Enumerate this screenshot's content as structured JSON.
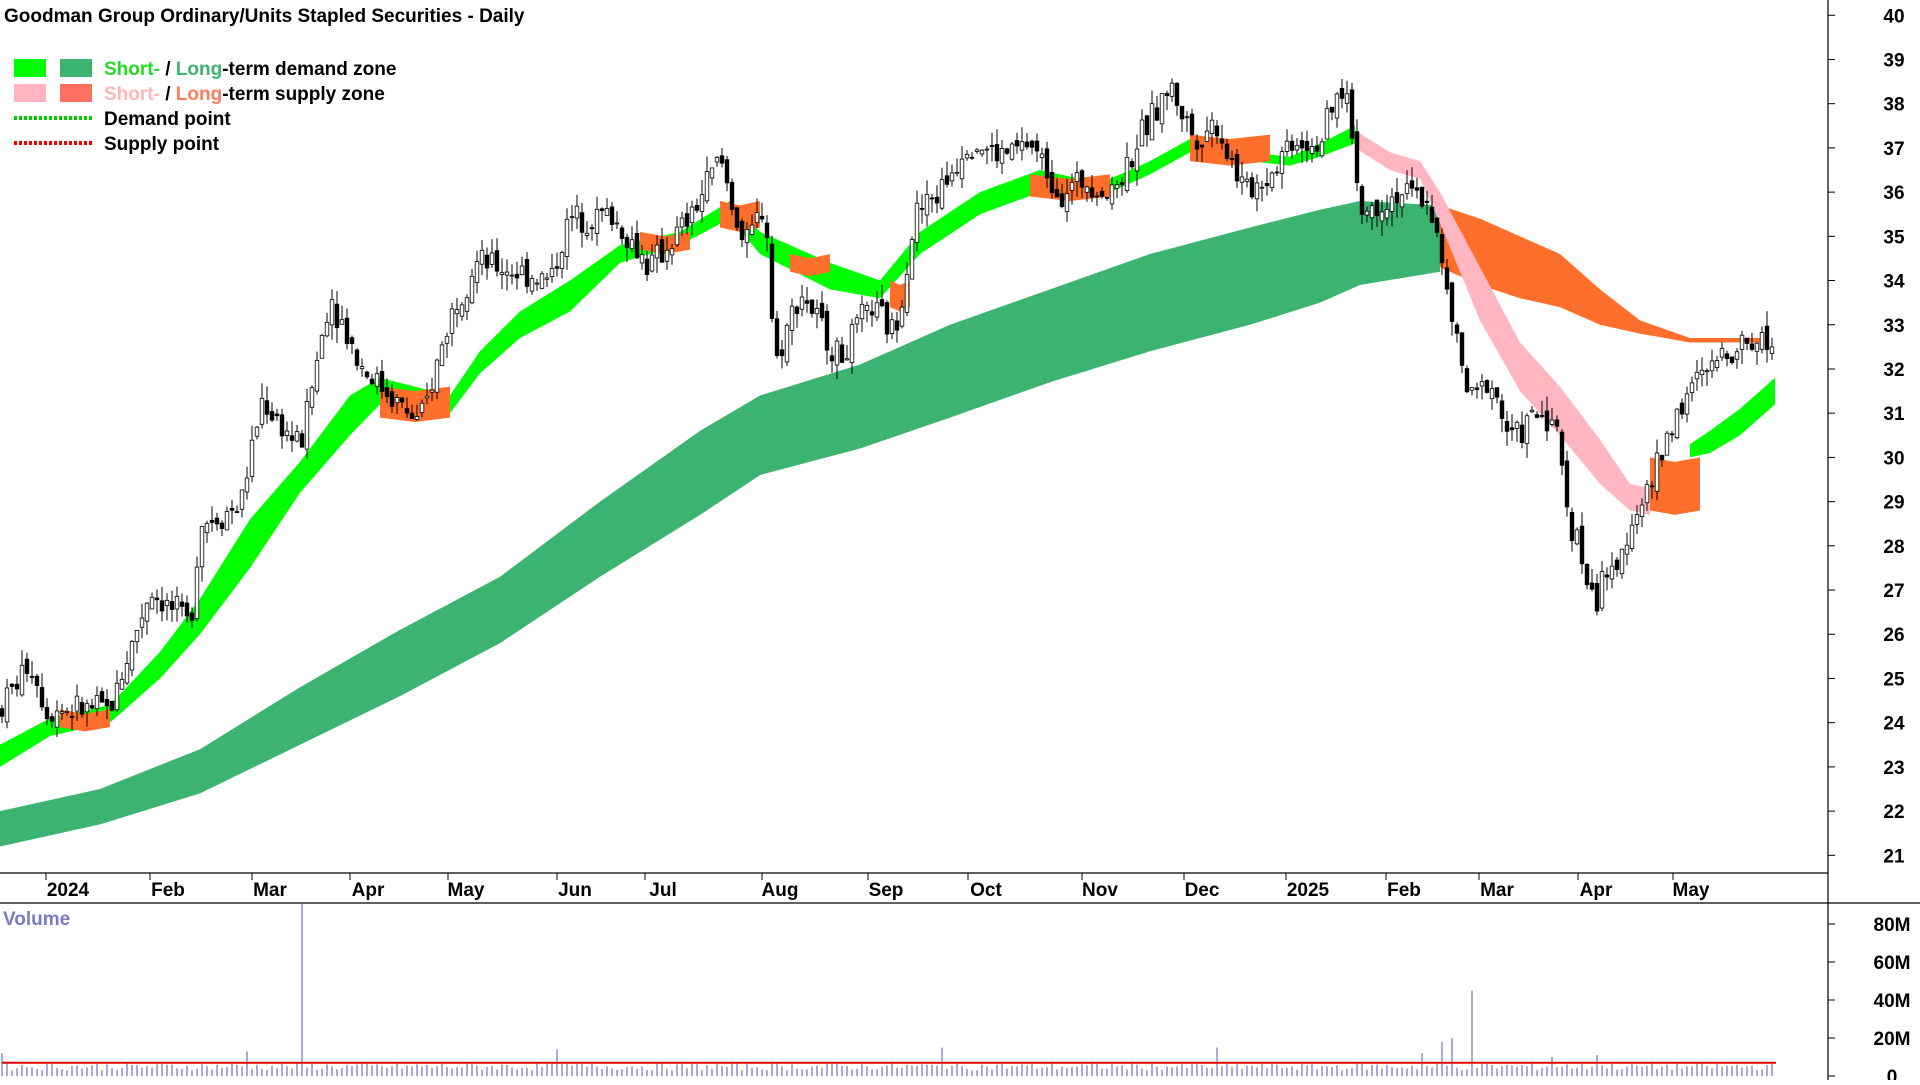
{
  "chart_data": {
    "type": "candlestick",
    "title": "Goodman Group Ordinary/Units Stapled Securities - Daily",
    "price_axis": {
      "min": 20.6,
      "max": 40.3,
      "ticks": [
        21,
        22,
        23,
        24,
        25,
        26,
        27,
        28,
        29,
        30,
        31,
        32,
        33,
        34,
        35,
        36,
        37,
        38,
        39,
        40
      ]
    },
    "x_labels": [
      {
        "label": "2024",
        "t": 46
      },
      {
        "label": "Feb",
        "t": 150
      },
      {
        "label": "Mar",
        "t": 252
      },
      {
        "label": "Apr",
        "t": 350
      },
      {
        "label": "May",
        "t": 448
      },
      {
        "label": "Jun",
        "t": 557
      },
      {
        "label": "Jul",
        "t": 645
      },
      {
        "label": "Aug",
        "t": 762
      },
      {
        "label": "Sep",
        "t": 868
      },
      {
        "label": "Oct",
        "t": 968
      },
      {
        "label": "Nov",
        "t": 1082
      },
      {
        "label": "Dec",
        "t": 1184
      },
      {
        "label": "2025",
        "t": 1286
      },
      {
        "label": "Feb",
        "t": 1386
      },
      {
        "label": "Mar",
        "t": 1479
      },
      {
        "label": "Apr",
        "t": 1578
      },
      {
        "label": "May",
        "t": 1673
      }
    ],
    "legend": [
      {
        "parts": [
          {
            "text": "Short-",
            "color": "#22dd22"
          },
          {
            "text": " / ",
            "color": "#000000"
          },
          {
            "text": "Long",
            "color": "#3cb371"
          },
          {
            "text": "-term demand zone",
            "color": "#000000"
          }
        ],
        "swatches": [
          "#00ff00",
          "#3cb371"
        ]
      },
      {
        "parts": [
          {
            "text": "Short-",
            "color": "#ffb6b6"
          },
          {
            "text": " / ",
            "color": "#000000"
          },
          {
            "text": "Long",
            "color": "#ff7b5c"
          },
          {
            "text": "-term supply zone",
            "color": "#000000"
          }
        ],
        "swatches": [
          "#ffb6c1",
          "#ff6f61"
        ]
      },
      {
        "parts": [
          {
            "text": "Demand point",
            "color": "#000000"
          }
        ],
        "line": "#00cc00"
      },
      {
        "parts": [
          {
            "text": "Supply point",
            "color": "#000000"
          }
        ],
        "line": "#ee0000"
      }
    ],
    "price_path": [
      {
        "t": 0,
        "p": 24.3
      },
      {
        "t": 30,
        "p": 25.4
      },
      {
        "t": 46,
        "p": 24.3
      },
      {
        "t": 110,
        "p": 24.3
      },
      {
        "t": 150,
        "p": 27.0
      },
      {
        "t": 190,
        "p": 26.2
      },
      {
        "t": 200,
        "p": 28.5
      },
      {
        "t": 240,
        "p": 28.9
      },
      {
        "t": 262,
        "p": 31.3
      },
      {
        "t": 300,
        "p": 30.2
      },
      {
        "t": 330,
        "p": 33.7
      },
      {
        "t": 360,
        "p": 32.1
      },
      {
        "t": 400,
        "p": 31.2
      },
      {
        "t": 420,
        "p": 30.7
      },
      {
        "t": 450,
        "p": 33.2
      },
      {
        "t": 475,
        "p": 34.4
      },
      {
        "t": 520,
        "p": 34.2
      },
      {
        "t": 550,
        "p": 34.0
      },
      {
        "t": 570,
        "p": 35.4
      },
      {
        "t": 610,
        "p": 35.5
      },
      {
        "t": 650,
        "p": 34.3
      },
      {
        "t": 690,
        "p": 35.4
      },
      {
        "t": 720,
        "p": 36.8
      },
      {
        "t": 745,
        "p": 34.7
      },
      {
        "t": 765,
        "p": 35.8
      },
      {
        "t": 775,
        "p": 32.1
      },
      {
        "t": 800,
        "p": 33.8
      },
      {
        "t": 840,
        "p": 32.2
      },
      {
        "t": 870,
        "p": 33.4
      },
      {
        "t": 895,
        "p": 32.8
      },
      {
        "t": 915,
        "p": 35.5
      },
      {
        "t": 940,
        "p": 36.0
      },
      {
        "t": 968,
        "p": 37.2
      },
      {
        "t": 1000,
        "p": 36.8
      },
      {
        "t": 1030,
        "p": 37.1
      },
      {
        "t": 1060,
        "p": 36.0
      },
      {
        "t": 1090,
        "p": 36.3
      },
      {
        "t": 1110,
        "p": 35.9
      },
      {
        "t": 1140,
        "p": 37.2
      },
      {
        "t": 1170,
        "p": 38.4
      },
      {
        "t": 1195,
        "p": 37.2
      },
      {
        "t": 1215,
        "p": 37.6
      },
      {
        "t": 1245,
        "p": 36.0
      },
      {
        "t": 1270,
        "p": 36.4
      },
      {
        "t": 1290,
        "p": 37.2
      },
      {
        "t": 1320,
        "p": 37.1
      },
      {
        "t": 1345,
        "p": 38.5
      },
      {
        "t": 1362,
        "p": 35.5
      },
      {
        "t": 1400,
        "p": 36.0
      },
      {
        "t": 1430,
        "p": 35.8
      },
      {
        "t": 1450,
        "p": 33.3
      },
      {
        "t": 1470,
        "p": 31.2
      },
      {
        "t": 1490,
        "p": 31.8
      },
      {
        "t": 1510,
        "p": 30.4
      },
      {
        "t": 1540,
        "p": 31.0
      },
      {
        "t": 1555,
        "p": 30.8
      },
      {
        "t": 1568,
        "p": 28.8
      },
      {
        "t": 1580,
        "p": 27.9
      },
      {
        "t": 1595,
        "p": 26.5
      },
      {
        "t": 1602,
        "p": 27.5
      },
      {
        "t": 1615,
        "p": 27.1
      },
      {
        "t": 1630,
        "p": 28.6
      },
      {
        "t": 1650,
        "p": 29.3
      },
      {
        "t": 1672,
        "p": 30.8
      },
      {
        "t": 1690,
        "p": 31.5
      },
      {
        "t": 1705,
        "p": 31.9
      },
      {
        "t": 1730,
        "p": 32.5
      },
      {
        "t": 1760,
        "p": 32.7
      },
      {
        "t": 1775,
        "p": 32.5
      }
    ],
    "demand_long": [
      {
        "t": 0,
        "top": 22.0,
        "bot": 21.2
      },
      {
        "t": 100,
        "top": 22.5,
        "bot": 21.7
      },
      {
        "t": 200,
        "top": 23.4,
        "bot": 22.4
      },
      {
        "t": 300,
        "top": 24.8,
        "bot": 23.5
      },
      {
        "t": 400,
        "top": 26.1,
        "bot": 24.6
      },
      {
        "t": 500,
        "top": 27.3,
        "bot": 25.8
      },
      {
        "t": 600,
        "top": 29.0,
        "bot": 27.3
      },
      {
        "t": 700,
        "top": 30.6,
        "bot": 28.7
      },
      {
        "t": 760,
        "top": 31.4,
        "bot": 29.6
      },
      {
        "t": 860,
        "top": 32.1,
        "bot": 30.2
      },
      {
        "t": 950,
        "top": 33.0,
        "bot": 30.9
      },
      {
        "t": 1050,
        "top": 33.8,
        "bot": 31.7
      },
      {
        "t": 1150,
        "top": 34.6,
        "bot": 32.4
      },
      {
        "t": 1250,
        "top": 35.2,
        "bot": 33.0
      },
      {
        "t": 1320,
        "top": 35.6,
        "bot": 33.5
      },
      {
        "t": 1360,
        "top": 35.8,
        "bot": 33.9
      },
      {
        "t": 1440,
        "top": 35.7,
        "bot": 34.2
      }
    ],
    "demand_short": [
      {
        "t": 0,
        "top": 23.5,
        "bot": 23.0
      },
      {
        "t": 50,
        "top": 24.1,
        "bot": 23.7
      },
      {
        "t": 110,
        "top": 24.4,
        "bot": 24.0
      },
      {
        "t": 160,
        "top": 25.6,
        "bot": 25.0
      },
      {
        "t": 200,
        "top": 26.8,
        "bot": 26.0
      },
      {
        "t": 250,
        "top": 28.6,
        "bot": 27.5
      },
      {
        "t": 300,
        "top": 29.9,
        "bot": 29.2
      },
      {
        "t": 350,
        "top": 31.4,
        "bot": 30.5
      },
      {
        "t": 380,
        "top": 31.8,
        "bot": 31.2
      },
      {
        "t": 450,
        "top": 31.4,
        "bot": 31.0
      },
      {
        "t": 480,
        "top": 32.4,
        "bot": 31.9
      },
      {
        "t": 520,
        "top": 33.3,
        "bot": 32.7
      },
      {
        "t": 570,
        "top": 34.0,
        "bot": 33.3
      },
      {
        "t": 620,
        "top": 34.8,
        "bot": 34.4
      },
      {
        "t": 680,
        "top": 35.1,
        "bot": 34.8
      },
      {
        "t": 730,
        "top": 35.8,
        "bot": 35.4
      },
      {
        "t": 760,
        "top": 35.1,
        "bot": 34.6
      },
      {
        "t": 830,
        "top": 34.4,
        "bot": 33.8
      },
      {
        "t": 880,
        "top": 34.0,
        "bot": 33.6
      },
      {
        "t": 920,
        "top": 35.1,
        "bot": 34.6
      },
      {
        "t": 980,
        "top": 36.0,
        "bot": 35.5
      },
      {
        "t": 1040,
        "top": 36.5,
        "bot": 36.0
      },
      {
        "t": 1100,
        "top": 36.2,
        "bot": 35.9
      },
      {
        "t": 1150,
        "top": 36.7,
        "bot": 36.4
      },
      {
        "t": 1190,
        "top": 37.2,
        "bot": 36.9
      },
      {
        "t": 1250,
        "top": 36.9,
        "bot": 36.7
      },
      {
        "t": 1290,
        "top": 36.8,
        "bot": 36.6
      },
      {
        "t": 1320,
        "top": 37.1,
        "bot": 36.8
      },
      {
        "t": 1355,
        "top": 37.5,
        "bot": 37.1
      }
    ],
    "demand_short_late": [
      {
        "t": 1690,
        "top": 30.3,
        "bot": 30.0
      },
      {
        "t": 1710,
        "top": 30.6,
        "bot": 30.1
      },
      {
        "t": 1740,
        "top": 31.1,
        "bot": 30.5
      },
      {
        "t": 1760,
        "top": 31.5,
        "bot": 30.9
      },
      {
        "t": 1775,
        "top": 31.8,
        "bot": 31.2
      }
    ],
    "supply_long": [
      {
        "t": 1440,
        "top": 35.7,
        "bot": 34.3
      },
      {
        "t": 1480,
        "top": 35.4,
        "bot": 33.9
      },
      {
        "t": 1520,
        "top": 35.0,
        "bot": 33.6
      },
      {
        "t": 1560,
        "top": 34.6,
        "bot": 33.4
      },
      {
        "t": 1600,
        "top": 33.8,
        "bot": 33.0
      },
      {
        "t": 1640,
        "top": 33.1,
        "bot": 32.8
      },
      {
        "t": 1690,
        "top": 32.7,
        "bot": 32.6
      },
      {
        "t": 1760,
        "top": 32.7,
        "bot": 32.6
      }
    ],
    "supply_short": [
      {
        "t": 1355,
        "top": 37.4,
        "bot": 37.0
      },
      {
        "t": 1390,
        "top": 36.9,
        "bot": 36.5
      },
      {
        "t": 1420,
        "top": 36.7,
        "bot": 36.3
      },
      {
        "t": 1440,
        "top": 36.0,
        "bot": 35.3
      },
      {
        "t": 1480,
        "top": 34.3,
        "bot": 33.1
      },
      {
        "t": 1520,
        "top": 32.6,
        "bot": 31.5
      },
      {
        "t": 1560,
        "top": 31.6,
        "bot": 30.5
      },
      {
        "t": 1600,
        "top": 30.4,
        "bot": 29.4
      },
      {
        "t": 1630,
        "top": 29.4,
        "bot": 28.8
      },
      {
        "t": 1650,
        "top": 29.3,
        "bot": 28.7
      }
    ],
    "short_supply_segments": [
      {
        "t0": 60,
        "t1": 110,
        "top": 24.3,
        "bot": 23.9
      },
      {
        "t0": 380,
        "t1": 450,
        "top": 31.6,
        "bot": 30.9
      },
      {
        "t0": 640,
        "t1": 690,
        "top": 35.1,
        "bot": 34.7
      },
      {
        "t0": 720,
        "t1": 760,
        "top": 35.8,
        "bot": 35.2
      },
      {
        "t0": 790,
        "t1": 830,
        "top": 34.6,
        "bot": 34.2
      },
      {
        "t0": 890,
        "t1": 910,
        "top": 34.0,
        "bot": 33.4
      },
      {
        "t0": 1030,
        "t1": 1110,
        "top": 36.4,
        "bot": 35.9
      },
      {
        "t0": 1190,
        "t1": 1270,
        "top": 37.3,
        "bot": 36.7
      },
      {
        "t0": 1650,
        "t1": 1700,
        "top": 30.0,
        "bot": 28.8
      }
    ],
    "volume_axis": {
      "label": "Volume",
      "ticks": [
        "0",
        "20M",
        "40M",
        "60M",
        "80M"
      ],
      "max": 90
    },
    "volume": {
      "baseline": 5,
      "spikes": [
        {
          "t": 300,
          "v": 91
        },
        {
          "t": 1473,
          "v": 45
        },
        {
          "t": 1440,
          "v": 18
        },
        {
          "t": 1450,
          "v": 20
        },
        {
          "t": 555,
          "v": 14
        },
        {
          "t": 940,
          "v": 15
        },
        {
          "t": 1215,
          "v": 15
        },
        {
          "t": 1775,
          "v": 14
        },
        {
          "t": 2,
          "v": 12
        },
        {
          "t": 247,
          "v": 13
        },
        {
          "t": 1420,
          "v": 12
        },
        {
          "t": 1550,
          "v": 10
        },
        {
          "t": 1595,
          "v": 11
        }
      ]
    },
    "volume_avg": 7
  }
}
